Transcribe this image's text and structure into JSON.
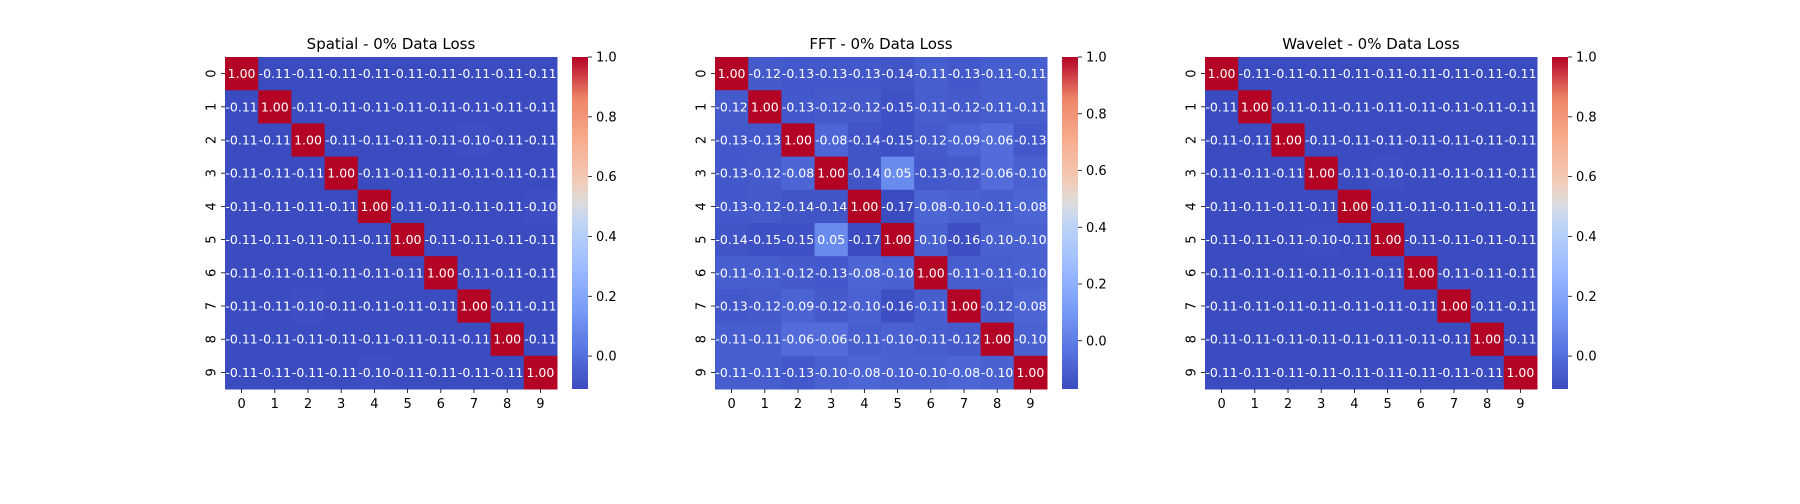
{
  "chart_data": [
    {
      "type": "heatmap",
      "title": "Spatial - 0% Data Loss",
      "xlabel": "",
      "ylabel": "",
      "x_categories": [
        "0",
        "1",
        "2",
        "3",
        "4",
        "5",
        "6",
        "7",
        "8",
        "9"
      ],
      "y_categories": [
        "0",
        "1",
        "2",
        "3",
        "4",
        "5",
        "6",
        "7",
        "8",
        "9"
      ],
      "values": [
        [
          1.0,
          -0.11,
          -0.11,
          -0.11,
          -0.11,
          -0.11,
          -0.11,
          -0.11,
          -0.11,
          -0.11
        ],
        [
          -0.11,
          1.0,
          -0.11,
          -0.11,
          -0.11,
          -0.11,
          -0.11,
          -0.11,
          -0.11,
          -0.11
        ],
        [
          -0.11,
          -0.11,
          1.0,
          -0.11,
          -0.11,
          -0.11,
          -0.11,
          -0.1,
          -0.11,
          -0.11
        ],
        [
          -0.11,
          -0.11,
          -0.11,
          1.0,
          -0.11,
          -0.11,
          -0.11,
          -0.11,
          -0.11,
          -0.11
        ],
        [
          -0.11,
          -0.11,
          -0.11,
          -0.11,
          1.0,
          -0.11,
          -0.11,
          -0.11,
          -0.11,
          -0.1
        ],
        [
          -0.11,
          -0.11,
          -0.11,
          -0.11,
          -0.11,
          1.0,
          -0.11,
          -0.11,
          -0.11,
          -0.11
        ],
        [
          -0.11,
          -0.11,
          -0.11,
          -0.11,
          -0.11,
          -0.11,
          1.0,
          -0.11,
          -0.11,
          -0.11
        ],
        [
          -0.11,
          -0.11,
          -0.1,
          -0.11,
          -0.11,
          -0.11,
          -0.11,
          1.0,
          -0.11,
          -0.11
        ],
        [
          -0.11,
          -0.11,
          -0.11,
          -0.11,
          -0.11,
          -0.11,
          -0.11,
          -0.11,
          1.0,
          -0.11
        ],
        [
          -0.11,
          -0.11,
          -0.11,
          -0.11,
          -0.1,
          -0.11,
          -0.11,
          -0.11,
          -0.11,
          1.0
        ]
      ],
      "colormap": "coolwarm",
      "vmin": -0.11,
      "vmax": 1.0,
      "colorbar_ticks": [
        "0.0",
        "0.2",
        "0.4",
        "0.6",
        "0.8",
        "1.0"
      ]
    },
    {
      "type": "heatmap",
      "title": "FFT - 0% Data Loss",
      "xlabel": "",
      "ylabel": "",
      "x_categories": [
        "0",
        "1",
        "2",
        "3",
        "4",
        "5",
        "6",
        "7",
        "8",
        "9"
      ],
      "y_categories": [
        "0",
        "1",
        "2",
        "3",
        "4",
        "5",
        "6",
        "7",
        "8",
        "9"
      ],
      "values": [
        [
          1.0,
          -0.12,
          -0.13,
          -0.13,
          -0.13,
          -0.14,
          -0.11,
          -0.13,
          -0.11,
          -0.11
        ],
        [
          -0.12,
          1.0,
          -0.13,
          -0.12,
          -0.12,
          -0.15,
          -0.11,
          -0.12,
          -0.11,
          -0.11
        ],
        [
          -0.13,
          -0.13,
          1.0,
          -0.08,
          -0.14,
          -0.15,
          -0.12,
          -0.09,
          -0.06,
          -0.13
        ],
        [
          -0.13,
          -0.12,
          -0.08,
          1.0,
          -0.14,
          0.05,
          -0.13,
          -0.12,
          -0.06,
          -0.1
        ],
        [
          -0.13,
          -0.12,
          -0.14,
          -0.14,
          1.0,
          -0.17,
          -0.08,
          -0.1,
          -0.11,
          -0.08
        ],
        [
          -0.14,
          -0.15,
          -0.15,
          0.05,
          -0.17,
          1.0,
          -0.1,
          -0.16,
          -0.1,
          -0.1
        ],
        [
          -0.11,
          -0.11,
          -0.12,
          -0.13,
          -0.08,
          -0.1,
          1.0,
          -0.11,
          -0.11,
          -0.1
        ],
        [
          -0.13,
          -0.12,
          -0.09,
          -0.12,
          -0.1,
          -0.16,
          -0.11,
          1.0,
          -0.12,
          -0.08
        ],
        [
          -0.11,
          -0.11,
          -0.06,
          -0.06,
          -0.11,
          -0.1,
          -0.11,
          -0.12,
          1.0,
          -0.1
        ],
        [
          -0.11,
          -0.11,
          -0.13,
          -0.1,
          -0.08,
          -0.1,
          -0.1,
          -0.08,
          -0.1,
          1.0
        ]
      ],
      "colormap": "coolwarm",
      "vmin": -0.17,
      "vmax": 1.0,
      "colorbar_ticks": [
        "0.0",
        "0.2",
        "0.4",
        "0.6",
        "0.8",
        "1.0"
      ]
    },
    {
      "type": "heatmap",
      "title": "Wavelet - 0% Data Loss",
      "xlabel": "",
      "ylabel": "",
      "x_categories": [
        "0",
        "1",
        "2",
        "3",
        "4",
        "5",
        "6",
        "7",
        "8",
        "9"
      ],
      "y_categories": [
        "0",
        "1",
        "2",
        "3",
        "4",
        "5",
        "6",
        "7",
        "8",
        "9"
      ],
      "values": [
        [
          1.0,
          -0.11,
          -0.11,
          -0.11,
          -0.11,
          -0.11,
          -0.11,
          -0.11,
          -0.11,
          -0.11
        ],
        [
          -0.11,
          1.0,
          -0.11,
          -0.11,
          -0.11,
          -0.11,
          -0.11,
          -0.11,
          -0.11,
          -0.11
        ],
        [
          -0.11,
          -0.11,
          1.0,
          -0.11,
          -0.11,
          -0.11,
          -0.11,
          -0.11,
          -0.11,
          -0.11
        ],
        [
          -0.11,
          -0.11,
          -0.11,
          1.0,
          -0.11,
          -0.1,
          -0.11,
          -0.11,
          -0.11,
          -0.11
        ],
        [
          -0.11,
          -0.11,
          -0.11,
          -0.11,
          1.0,
          -0.11,
          -0.11,
          -0.11,
          -0.11,
          -0.11
        ],
        [
          -0.11,
          -0.11,
          -0.11,
          -0.1,
          -0.11,
          1.0,
          -0.11,
          -0.11,
          -0.11,
          -0.11
        ],
        [
          -0.11,
          -0.11,
          -0.11,
          -0.11,
          -0.11,
          -0.11,
          1.0,
          -0.11,
          -0.11,
          -0.11
        ],
        [
          -0.11,
          -0.11,
          -0.11,
          -0.11,
          -0.11,
          -0.11,
          -0.11,
          1.0,
          -0.11,
          -0.11
        ],
        [
          -0.11,
          -0.11,
          -0.11,
          -0.11,
          -0.11,
          -0.11,
          -0.11,
          -0.11,
          1.0,
          -0.11
        ],
        [
          -0.11,
          -0.11,
          -0.11,
          -0.11,
          -0.11,
          -0.11,
          -0.11,
          -0.11,
          -0.11,
          1.0
        ]
      ],
      "colormap": "coolwarm",
      "vmin": -0.11,
      "vmax": 1.0,
      "colorbar_ticks": [
        "0.0",
        "0.2",
        "0.4",
        "0.6",
        "0.8",
        "1.0"
      ]
    }
  ]
}
